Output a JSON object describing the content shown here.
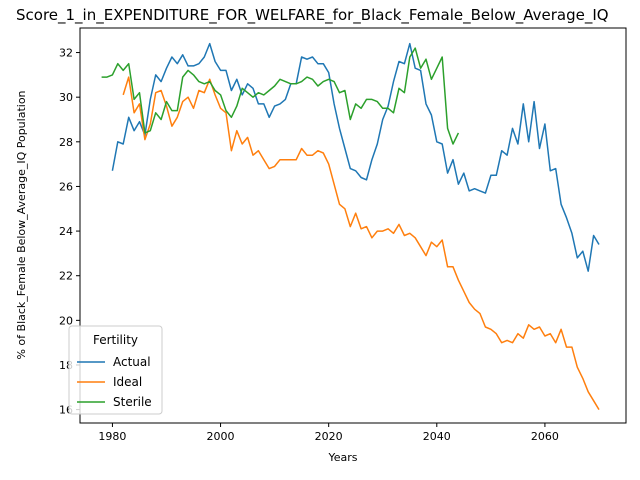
{
  "chart_data": {
    "type": "line",
    "title": "Score_1_in_EXPENDITURE_FOR_WELFARE_for_Black_Female_Below_Average_IQ",
    "xlabel": "Years",
    "ylabel": "% of Black_Female Below_Average_IQ Population",
    "xlim": [
      1974,
      2075
    ],
    "ylim": [
      15.4,
      33.1
    ],
    "xticks": [
      1980,
      2000,
      2020,
      2040,
      2060
    ],
    "yticks": [
      16,
      18,
      20,
      22,
      24,
      26,
      28,
      30,
      32
    ],
    "grid": false,
    "legend": {
      "title": "Fertility",
      "position": "lower-left"
    },
    "series": [
      {
        "name": "Actual",
        "color": "#1f77b4",
        "x": [
          1980,
          1981,
          1982,
          1983,
          1984,
          1985,
          1986,
          1987,
          1988,
          1989,
          1990,
          1991,
          1992,
          1993,
          1994,
          1995,
          1996,
          1997,
          1998,
          1999,
          2000,
          2001,
          2002,
          2003,
          2004,
          2005,
          2006,
          2007,
          2008,
          2009,
          2010,
          2011,
          2012,
          2013,
          2014,
          2015,
          2016,
          2017,
          2018,
          2019,
          2020,
          2021,
          2022,
          2023,
          2024,
          2025,
          2026,
          2027,
          2028,
          2029,
          2030,
          2031,
          2032,
          2033,
          2034,
          2035,
          2036,
          2037,
          2038,
          2039,
          2040,
          2041,
          2042,
          2043,
          2044,
          2045,
          2046,
          2047,
          2048,
          2049,
          2050,
          2051,
          2052,
          2053,
          2054,
          2055,
          2056,
          2057,
          2058,
          2059,
          2060,
          2061,
          2062,
          2063,
          2064,
          2065,
          2066,
          2067,
          2068,
          2069,
          2070
        ],
        "values": [
          26.7,
          28.0,
          27.9,
          29.1,
          28.5,
          28.9,
          28.3,
          29.9,
          31.0,
          30.7,
          31.3,
          31.8,
          31.5,
          31.9,
          31.4,
          31.4,
          31.5,
          31.8,
          32.4,
          31.6,
          31.2,
          31.2,
          30.3,
          30.8,
          30.1,
          30.6,
          30.4,
          29.7,
          29.7,
          29.1,
          29.6,
          29.7,
          29.9,
          30.6,
          30.6,
          31.8,
          31.7,
          31.8,
          31.5,
          31.5,
          31.1,
          29.7,
          28.6,
          27.7,
          26.8,
          26.7,
          26.4,
          26.3,
          27.2,
          27.9,
          29.0,
          29.6,
          30.7,
          31.6,
          31.5,
          32.4,
          31.3,
          31.2,
          29.7,
          29.2,
          28.0,
          27.9,
          26.6,
          27.2,
          26.1,
          26.6,
          25.8,
          25.9,
          25.8,
          25.7,
          26.5,
          26.5,
          27.6,
          27.4,
          28.6,
          27.9,
          29.7,
          28.0,
          29.8,
          27.7,
          28.8,
          26.7,
          26.8,
          25.2,
          24.6,
          23.9,
          22.8,
          23.1,
          22.2,
          23.8,
          23.4
        ]
      },
      {
        "name": "Ideal",
        "color": "#ff7f0e",
        "x": [
          1982,
          1983,
          1984,
          1985,
          1986,
          1987,
          1988,
          1989,
          1990,
          1991,
          1992,
          1993,
          1994,
          1995,
          1996,
          1997,
          1998,
          1999,
          2000,
          2001,
          2002,
          2003,
          2004,
          2005,
          2006,
          2007,
          2008,
          2009,
          2010,
          2011,
          2012,
          2013,
          2014,
          2015,
          2016,
          2017,
          2018,
          2019,
          2020,
          2021,
          2022,
          2023,
          2024,
          2025,
          2026,
          2027,
          2028,
          2029,
          2030,
          2031,
          2032,
          2033,
          2034,
          2035,
          2036,
          2037,
          2038,
          2039,
          2040,
          2041,
          2042,
          2043,
          2044,
          2045,
          2046,
          2047,
          2048,
          2049,
          2050,
          2051,
          2052,
          2053,
          2054,
          2055,
          2056,
          2057,
          2058,
          2059,
          2060,
          2061,
          2062,
          2063,
          2064,
          2065,
          2066,
          2067,
          2068,
          2069,
          2070
        ],
        "values": [
          30.1,
          30.9,
          29.3,
          29.7,
          28.1,
          28.8,
          30.2,
          30.3,
          29.6,
          28.7,
          29.1,
          29.8,
          30.0,
          29.5,
          30.3,
          30.2,
          30.8,
          30.1,
          29.5,
          29.3,
          27.6,
          28.5,
          27.9,
          28.2,
          27.4,
          27.6,
          27.2,
          26.8,
          26.9,
          27.2,
          27.2,
          27.2,
          27.2,
          27.7,
          27.4,
          27.4,
          27.6,
          27.5,
          27.0,
          26.1,
          25.2,
          25.0,
          24.2,
          24.8,
          24.1,
          24.2,
          23.7,
          24.0,
          24.0,
          24.1,
          23.9,
          24.3,
          23.8,
          23.9,
          23.7,
          23.3,
          22.9,
          23.5,
          23.3,
          23.6,
          22.4,
          22.4,
          21.8,
          21.3,
          20.8,
          20.5,
          20.3,
          19.7,
          19.6,
          19.4,
          19.0,
          19.1,
          19.0,
          19.4,
          19.2,
          19.8,
          19.6,
          19.7,
          19.3,
          19.4,
          19.0,
          19.6,
          18.8,
          18.8,
          17.9,
          17.4,
          16.8,
          16.4,
          16.0
        ]
      },
      {
        "name": "Sterile",
        "color": "#2ca02c",
        "x": [
          1978,
          1979,
          1980,
          1981,
          1982,
          1983,
          1984,
          1985,
          1986,
          1987,
          1988,
          1989,
          1990,
          1991,
          1992,
          1993,
          1994,
          1995,
          1996,
          1997,
          1998,
          1999,
          2000,
          2001,
          2002,
          2003,
          2004,
          2005,
          2006,
          2007,
          2008,
          2009,
          2010,
          2011,
          2012,
          2013,
          2014,
          2015,
          2016,
          2017,
          2018,
          2019,
          2020,
          2021,
          2022,
          2023,
          2024,
          2025,
          2026,
          2027,
          2028,
          2029,
          2030,
          2031,
          2032,
          2033,
          2034,
          2035,
          2036,
          2037,
          2038,
          2039,
          2040,
          2041,
          2042,
          2043,
          2044
        ],
        "values": [
          30.9,
          30.9,
          31.0,
          31.5,
          31.2,
          31.5,
          29.9,
          30.2,
          28.4,
          28.5,
          29.3,
          29.0,
          29.8,
          29.4,
          29.4,
          30.9,
          31.2,
          31.0,
          30.7,
          30.6,
          30.7,
          30.3,
          30.1,
          29.4,
          29.1,
          29.6,
          30.4,
          30.2,
          30.0,
          30.2,
          30.1,
          30.3,
          30.5,
          30.8,
          30.7,
          30.6,
          30.6,
          30.7,
          30.9,
          30.8,
          30.5,
          30.7,
          30.8,
          30.7,
          30.2,
          30.3,
          29.0,
          29.7,
          29.5,
          29.9,
          29.9,
          29.8,
          29.5,
          29.5,
          29.3,
          30.4,
          30.2,
          31.8,
          32.2,
          31.3,
          31.7,
          30.8,
          31.3,
          31.8,
          28.6,
          27.9,
          28.4
        ]
      }
    ]
  }
}
